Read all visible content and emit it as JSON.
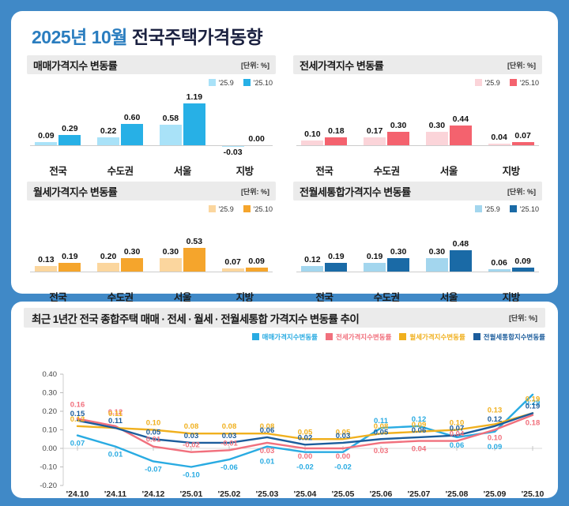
{
  "header": {
    "title_highlight": "2025년 10월",
    "title_rest": " 전국주택가격동향"
  },
  "chart_data": [
    {
      "type": "bar",
      "title": "매매가격지수 변동률",
      "unit": "[단위: %]",
      "categories": [
        "전국",
        "수도권",
        "서울",
        "지방"
      ],
      "series": [
        {
          "name": "'25.9",
          "color": "#a9e2f8",
          "values": [
            0.09,
            0.22,
            0.58,
            -0.03
          ]
        },
        {
          "name": "'25.10",
          "color": "#27b0e6",
          "values": [
            0.29,
            0.6,
            1.19,
            0.0
          ]
        }
      ],
      "scale_max": 1.4,
      "grid": "baseline-only",
      "legend_position": "top-right"
    },
    {
      "type": "bar",
      "title": "전세가격지수 변동률",
      "unit": "[단위: %]",
      "categories": [
        "전국",
        "수도권",
        "서울",
        "지방"
      ],
      "series": [
        {
          "name": "'25.9",
          "color": "#fbd4d9",
          "values": [
            0.1,
            0.17,
            0.3,
            0.04
          ]
        },
        {
          "name": "'25.10",
          "color": "#f4626e",
          "values": [
            0.18,
            0.3,
            0.44,
            0.07
          ]
        }
      ],
      "scale_max": 1.1,
      "grid": "baseline-only",
      "legend_position": "top-right"
    },
    {
      "type": "bar",
      "title": "월세가격지수 변동률",
      "unit": "[단위: %]",
      "categories": [
        "전국",
        "수도권",
        "서울",
        "지방"
      ],
      "series": [
        {
          "name": "'25.9",
          "color": "#fbd69e",
          "values": [
            0.13,
            0.2,
            0.3,
            0.07
          ]
        },
        {
          "name": "'25.10",
          "color": "#f5a52c",
          "values": [
            0.19,
            0.3,
            0.53,
            0.09
          ]
        }
      ],
      "scale_max": 1.1,
      "grid": "baseline-only",
      "legend_position": "top-right"
    },
    {
      "type": "bar",
      "title": "전월세통합가격지수 변동률",
      "unit": "[단위: %]",
      "categories": [
        "전국",
        "수도권",
        "서울",
        "지방"
      ],
      "series": [
        {
          "name": "'25.9",
          "color": "#a3d6ee",
          "values": [
            0.12,
            0.19,
            0.3,
            0.06
          ]
        },
        {
          "name": "'25.10",
          "color": "#1a6aa6",
          "values": [
            0.19,
            0.3,
            0.48,
            0.09
          ]
        }
      ],
      "scale_max": 1.1,
      "grid": "baseline-only",
      "legend_position": "top-right"
    },
    {
      "type": "line",
      "title": "최근 1년간 전국 종합주택 매매 · 전세 · 월세 · 전월세통합 가격지수 변동률 추이",
      "unit": "[단위: %]",
      "x": [
        "'24.10",
        "'24.11",
        "'24.12",
        "'25.01",
        "'25.02",
        "'25.03",
        "'25.04",
        "'25.05",
        "'25.06",
        "'25.07",
        "'25.08",
        "'25.09",
        "'25.10"
      ],
      "ylim": [
        -0.2,
        0.4
      ],
      "yticks": [
        0.4,
        0.3,
        0.2,
        0.1,
        0.0,
        -0.1,
        -0.2
      ],
      "grid": "zero-line-only",
      "legend_position": "top-right",
      "series": [
        {
          "name": "매매가격지수변동률",
          "color": "#29abe2",
          "values": [
            0.07,
            0.01,
            -0.07,
            -0.1,
            -0.06,
            0.01,
            -0.02,
            -0.02,
            0.11,
            0.12,
            0.06,
            0.09,
            0.29
          ]
        },
        {
          "name": "전세가격지수변동률",
          "color": "#f1707d",
          "values": [
            0.16,
            0.12,
            0.01,
            -0.02,
            -0.01,
            0.03,
            0.0,
            0.0,
            0.03,
            0.04,
            0.04,
            0.1,
            0.18
          ]
        },
        {
          "name": "월세가격지수변동률",
          "color": "#f0b01e",
          "values": [
            0.12,
            0.11,
            0.1,
            0.08,
            0.08,
            0.08,
            0.05,
            0.05,
            0.08,
            0.09,
            0.1,
            0.13,
            0.19
          ]
        },
        {
          "name": "전월세통합지수변동률",
          "color": "#1c5d9c",
          "values": [
            0.15,
            0.11,
            0.05,
            0.03,
            0.03,
            0.06,
            0.02,
            0.03,
            0.05,
            0.06,
            0.07,
            0.12,
            0.19
          ]
        }
      ]
    }
  ]
}
